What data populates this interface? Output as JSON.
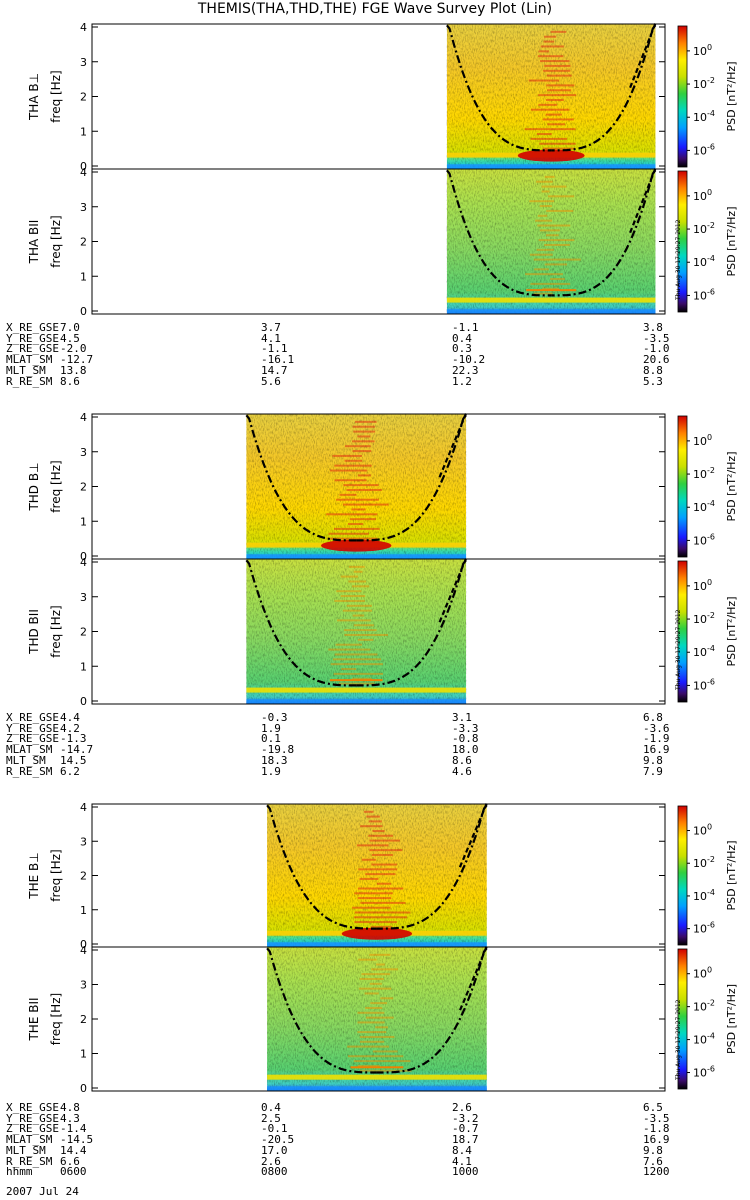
{
  "title": "THEMIS(THA,THD,THE) FGE Wave Survey Plot (Lin)",
  "timestamp_label": "Thu Aug 30 17:29:27 2012",
  "date_label": "2007 Jul 24",
  "colors": {
    "line": "#000000"
  },
  "colorbar": {
    "label": "PSD [nT^2/Hz]",
    "ticks": [
      "10^0",
      "10^-2",
      "10^-4",
      "10^-6"
    ],
    "tick_exponents": [
      0,
      -2,
      -4,
      -6
    ],
    "range_log10": [
      -7,
      1.5
    ]
  },
  "chart_data": [
    {
      "type": "heatmap",
      "probe": "THA",
      "component": "B⊥",
      "ylabel_top": "THA B⊥",
      "ylabel": "freq [Hz]",
      "yticks": [
        "0",
        "1",
        "2",
        "3",
        "4"
      ],
      "ylim": [
        0,
        4
      ],
      "xlim_hhmm": [
        600,
        1200
      ],
      "data_coverage_hhmm": [
        943,
        1154
      ],
      "cutoff_curve": "dash-dot",
      "strong_band_hz": 0.3
    },
    {
      "type": "heatmap",
      "probe": "THA",
      "component": "BII",
      "ylabel_top": "THA BII",
      "ylabel": "freq [Hz]",
      "yticks": [
        "0",
        "1",
        "2",
        "3",
        "4"
      ],
      "ylim": [
        0,
        4
      ],
      "xlim_hhmm": [
        600,
        1200
      ],
      "data_coverage_hhmm": [
        943,
        1154
      ],
      "cutoff_curve": "dash-dot",
      "strong_band_hz": 0.3
    },
    {
      "type": "heatmap",
      "probe": "THD",
      "component": "B⊥",
      "ylabel_top": "THD B⊥",
      "ylabel": "freq [Hz]",
      "yticks": [
        "0",
        "1",
        "2",
        "3",
        "4"
      ],
      "ylim": [
        0,
        4
      ],
      "xlim_hhmm": [
        600,
        1200
      ],
      "data_coverage_hhmm": [
        737,
        955
      ],
      "cutoff_curve": "dash-dot",
      "strong_band_hz": 0.3
    },
    {
      "type": "heatmap",
      "probe": "THD",
      "component": "BII",
      "ylabel_top": "THD BII",
      "ylabel": "freq [Hz]",
      "yticks": [
        "0",
        "1",
        "2",
        "3",
        "4"
      ],
      "ylim": [
        0,
        4
      ],
      "xlim_hhmm": [
        600,
        1200
      ],
      "data_coverage_hhmm": [
        737,
        955
      ],
      "cutoff_curve": "dash-dot",
      "strong_band_hz": 0.3
    },
    {
      "type": "heatmap",
      "probe": "THE",
      "component": "B⊥",
      "ylabel_top": "THE B⊥",
      "ylabel": "freq [Hz]",
      "yticks": [
        "0",
        "1",
        "2",
        "3",
        "4"
      ],
      "ylim": [
        0,
        4
      ],
      "xlim_hhmm": [
        600,
        1200
      ],
      "data_coverage_hhmm": [
        750,
        968
      ],
      "cutoff_curve": "dash-dot",
      "strong_band_hz": 0.3
    },
    {
      "type": "heatmap",
      "probe": "THE",
      "component": "BII",
      "ylabel_top": "THE BII",
      "ylabel": "freq [Hz]",
      "yticks": [
        "0",
        "1",
        "2",
        "3",
        "4"
      ],
      "ylim": [
        0,
        4
      ],
      "xlim_hhmm": [
        600,
        1200
      ],
      "data_coverage_hhmm": [
        750,
        968
      ],
      "cutoff_curve": "dash-dot",
      "strong_band_hz": 0.3
    }
  ],
  "ephemeris": [
    {
      "rows": [
        {
          "label": "X_RE_GSE",
          "values": [
            "7.0",
            "3.7",
            "-1.1",
            "3.8"
          ]
        },
        {
          "label": "Y_RE_GSE",
          "values": [
            "4.5",
            "4.1",
            "0.4",
            "-3.5"
          ]
        },
        {
          "label": "Z_RE_GSE",
          "values": [
            "-2.0",
            "-1.1",
            "0.3",
            "-1.0"
          ]
        },
        {
          "label": "MLAT_SM",
          "values": [
            "-12.7",
            "-16.1",
            "-10.2",
            "20.6"
          ]
        },
        {
          "label": "MLT_SM",
          "values": [
            "13.8",
            "14.7",
            "22.3",
            "8.8"
          ]
        },
        {
          "label": "R_RE_SM",
          "values": [
            "8.6",
            "5.6",
            "1.2",
            "5.3"
          ]
        }
      ]
    },
    {
      "rows": [
        {
          "label": "X_RE_GSE",
          "values": [
            "4.4",
            "-0.3",
            "3.1",
            "6.8"
          ]
        },
        {
          "label": "Y_RE_GSE",
          "values": [
            "4.2",
            "1.9",
            "-3.3",
            "-3.6"
          ]
        },
        {
          "label": "Z_RE_GSE",
          "values": [
            "-1.3",
            "0.1",
            "-0.8",
            "-1.9"
          ]
        },
        {
          "label": "MLAT_SM",
          "values": [
            "-14.7",
            "-19.8",
            "18.0",
            "16.9"
          ]
        },
        {
          "label": "MLT_SM",
          "values": [
            "14.5",
            "18.3",
            "8.6",
            "9.8"
          ]
        },
        {
          "label": "R_RE_SM",
          "values": [
            "6.2",
            "1.9",
            "4.6",
            "7.9"
          ]
        }
      ]
    },
    {
      "rows": [
        {
          "label": "X_RE_GSE",
          "values": [
            "4.8",
            "0.4",
            "2.6",
            "6.5"
          ]
        },
        {
          "label": "Y_RE_GSE",
          "values": [
            "4.3",
            "2.5",
            "-3.2",
            "-3.5"
          ]
        },
        {
          "label": "Z_RE_GSE",
          "values": [
            "-1.4",
            "-0.1",
            "-0.7",
            "-1.8"
          ]
        },
        {
          "label": "MLAT_SM",
          "values": [
            "-14.5",
            "-20.5",
            "18.7",
            "16.9"
          ]
        },
        {
          "label": "MLT_SM",
          "values": [
            "14.4",
            "17.0",
            "8.4",
            "9.8"
          ]
        },
        {
          "label": "R_RE_SM",
          "values": [
            "6.6",
            "2.6",
            "4.1",
            "7.6"
          ]
        },
        {
          "label": "hhmm",
          "values": [
            "0600",
            "0800",
            "1000",
            "1200"
          ]
        }
      ]
    }
  ]
}
